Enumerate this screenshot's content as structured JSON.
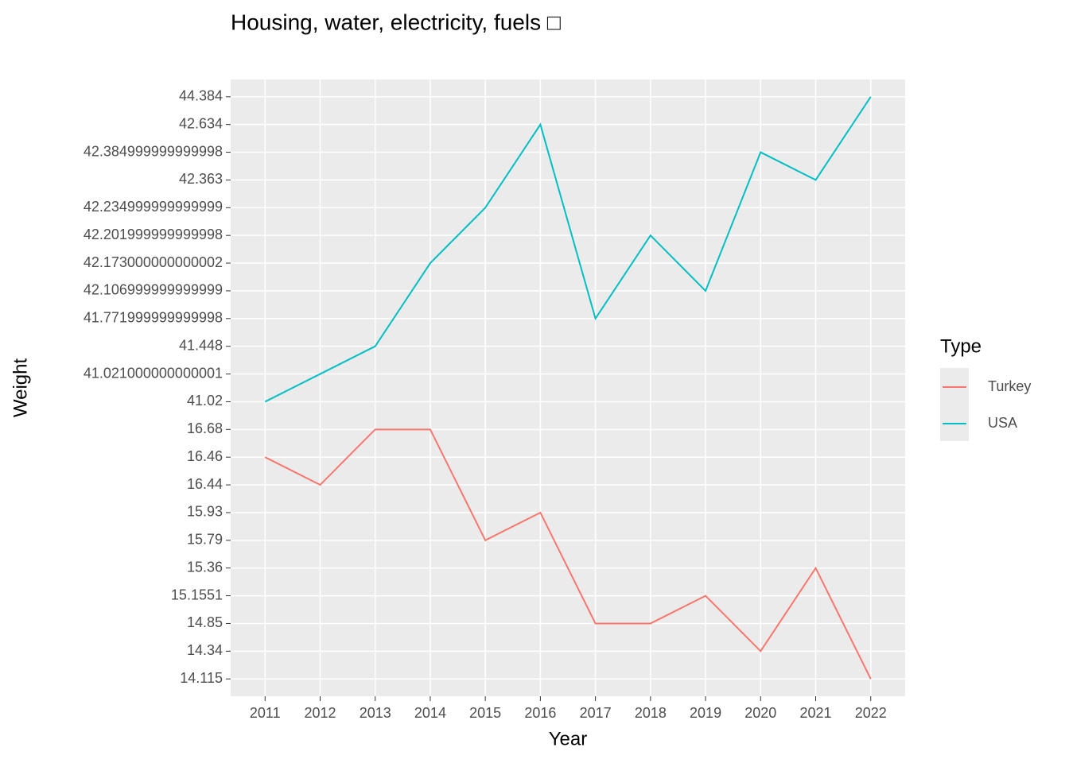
{
  "chart_data": {
    "type": "line",
    "title": "Housing, water, electricity, fuels □",
    "x_label": "Year",
    "y_label": "Weight",
    "legend_title": "Type",
    "categories": [
      "2011",
      "2012",
      "2013",
      "2014",
      "2015",
      "2016",
      "2017",
      "2018",
      "2019",
      "2020",
      "2021",
      "2022"
    ],
    "series": [
      {
        "name": "Turkey",
        "color": "#f8766d",
        "values": [
          16.46,
          16.44,
          16.68,
          16.68,
          15.79,
          15.93,
          14.85,
          14.85,
          15.1551,
          14.34,
          15.36,
          14.115
        ]
      },
      {
        "name": "USA",
        "color": "#00bfc4",
        "values": [
          41.02,
          41.021,
          41.448,
          42.173,
          42.235,
          42.634,
          41.772,
          42.202,
          42.107,
          42.385,
          42.363,
          44.384
        ]
      }
    ],
    "yticks": [
      14.115,
      14.34,
      14.85,
      15.1551,
      15.36,
      15.79,
      15.93,
      16.44,
      16.46,
      16.68,
      41.02,
      {
        "value": 41.021,
        "label": "41.021000000000001"
      },
      41.448,
      {
        "value": 41.772,
        "label": "41.771999999999998"
      },
      {
        "value": 42.107,
        "label": "42.106999999999999"
      },
      {
        "value": 42.173,
        "label": "42.173000000000002"
      },
      {
        "value": 42.202,
        "label": "42.201999999999998"
      },
      {
        "value": 42.235,
        "label": "42.234999999999999"
      },
      42.363,
      {
        "value": 42.385,
        "label": "42.384999999999998"
      },
      42.634,
      44.384
    ],
    "grid": true
  }
}
